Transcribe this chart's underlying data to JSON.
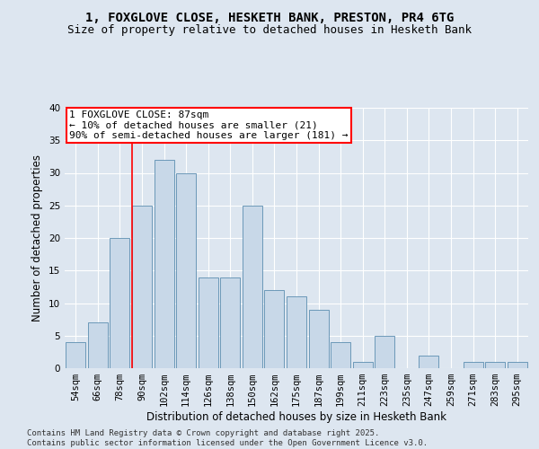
{
  "title": "1, FOXGLOVE CLOSE, HESKETH BANK, PRESTON, PR4 6TG",
  "subtitle": "Size of property relative to detached houses in Hesketh Bank",
  "xlabel": "Distribution of detached houses by size in Hesketh Bank",
  "ylabel": "Number of detached properties",
  "bar_color": "#c8d8e8",
  "bar_edge_color": "#5b8db0",
  "background_color": "#dde6f0",
  "grid_color": "#ffffff",
  "fig_background": "#dde6f0",
  "categories": [
    "54sqm",
    "66sqm",
    "78sqm",
    "90sqm",
    "102sqm",
    "114sqm",
    "126sqm",
    "138sqm",
    "150sqm",
    "162sqm",
    "175sqm",
    "187sqm",
    "199sqm",
    "211sqm",
    "223sqm",
    "235sqm",
    "247sqm",
    "259sqm",
    "271sqm",
    "283sqm",
    "295sqm"
  ],
  "values": [
    4,
    7,
    20,
    25,
    32,
    30,
    14,
    14,
    25,
    12,
    11,
    9,
    4,
    1,
    5,
    0,
    2,
    0,
    1,
    1,
    1
  ],
  "annotation_text": "1 FOXGLOVE CLOSE: 87sqm\n← 10% of detached houses are smaller (21)\n90% of semi-detached houses are larger (181) →",
  "redline_x": 2.55,
  "ylim": [
    0,
    40
  ],
  "yticks": [
    0,
    5,
    10,
    15,
    20,
    25,
    30,
    35,
    40
  ],
  "footer": "Contains HM Land Registry data © Crown copyright and database right 2025.\nContains public sector information licensed under the Open Government Licence v3.0.",
  "title_fontsize": 10,
  "subtitle_fontsize": 9,
  "xlabel_fontsize": 8.5,
  "ylabel_fontsize": 8.5,
  "tick_fontsize": 7.5,
  "annotation_fontsize": 8,
  "footer_fontsize": 6.5
}
